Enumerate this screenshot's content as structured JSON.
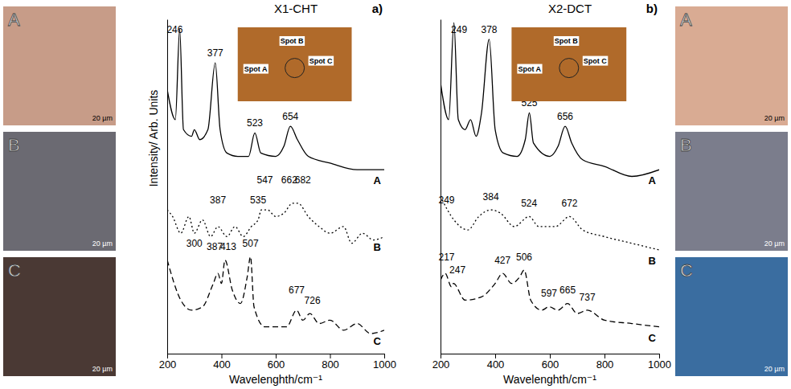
{
  "chart_data": [
    {
      "type": "line",
      "title": "X1-CHT",
      "panel": "a)",
      "x_label": "Wavelenghth/cm⁻¹",
      "y_label": "Intensity/ Arb. Units",
      "xlim": [
        200,
        1000
      ],
      "xticks": [
        200,
        400,
        600,
        800,
        1000
      ],
      "ylim": [
        0,
        100
      ],
      "tick_labels": "x",
      "grid": false,
      "inset_labels": [
        "Spot A",
        "Spot B",
        "Spot C"
      ],
      "series": [
        {
          "name": "A",
          "color": "#000000",
          "line_style": "solid",
          "x": [
            200,
            230,
            246,
            260,
            290,
            300,
            320,
            350,
            377,
            395,
            420,
            460,
            500,
            523,
            545,
            600,
            630,
            654,
            680,
            720,
            800,
            900,
            1000
          ],
          "values": [
            79,
            70,
            97,
            67,
            65,
            67,
            64,
            67,
            87,
            67,
            60,
            59,
            59,
            66,
            60,
            59,
            62,
            68,
            64,
            59,
            57,
            55,
            55
          ]
        },
        {
          "name": "B",
          "color": "#000000",
          "line_style": "dotted",
          "x": [
            200,
            220,
            250,
            280,
            300,
            330,
            360,
            387,
            420,
            450,
            480,
            510,
            535,
            547,
            570,
            600,
            630,
            662,
            682,
            720,
            760,
            800,
            850,
            880,
            920,
            960,
            1000
          ],
          "values": [
            43,
            41,
            36,
            41,
            36,
            40,
            35,
            38,
            35,
            38,
            35,
            38,
            40,
            43,
            43,
            41,
            42,
            45,
            45,
            41,
            38,
            36,
            38,
            33,
            36,
            34,
            35
          ]
        },
        {
          "name": "C",
          "color": "#000000",
          "line_style": "dashed",
          "x": [
            200,
            250,
            290,
            330,
            370,
            387,
            400,
            413,
            440,
            470,
            495,
            507,
            520,
            560,
            600,
            640,
            677,
            700,
            726,
            760,
            800,
            850,
            900,
            950,
            1000
          ],
          "values": [
            28,
            16,
            13,
            14,
            21,
            24,
            21,
            28,
            19,
            15,
            23,
            29,
            14,
            8,
            8,
            8,
            13,
            10,
            12,
            9,
            10,
            7,
            9,
            6,
            7
          ]
        }
      ],
      "annotations": [
        {
          "text": "246",
          "x": 228,
          "y": 95
        },
        {
          "text": "377",
          "x": 377,
          "y": 88
        },
        {
          "text": "523",
          "x": 523,
          "y": 67
        },
        {
          "text": "654",
          "x": 654,
          "y": 69
        },
        {
          "text": "300",
          "x": 300,
          "y": 31
        },
        {
          "text": "387",
          "x": 387,
          "y": 44
        },
        {
          "text": "535",
          "x": 535,
          "y": 44
        },
        {
          "text": "547",
          "x": 560,
          "y": 50
        },
        {
          "text": "662",
          "x": 650,
          "y": 50
        },
        {
          "text": "682",
          "x": 700,
          "y": 50
        },
        {
          "text": "387",
          "x": 375,
          "y": 30
        },
        {
          "text": "413",
          "x": 425,
          "y": 30
        },
        {
          "text": "507",
          "x": 507,
          "y": 31
        },
        {
          "text": "677",
          "x": 677,
          "y": 17
        },
        {
          "text": "726",
          "x": 735,
          "y": 14
        }
      ]
    },
    {
      "type": "line",
      "title": "X2-DCT",
      "panel": "b)",
      "x_label": "Wavelenghth/cm⁻¹",
      "xlim": [
        200,
        1000
      ],
      "xticks": [
        200,
        400,
        600,
        800,
        1000
      ],
      "ylim": [
        0,
        100
      ],
      "tick_labels": "x",
      "grid": false,
      "inset_labels": [
        "Spot A",
        "Spot B",
        "Spot C"
      ],
      "series": [
        {
          "name": "A",
          "color": "#000000",
          "line_style": "solid",
          "x": [
            200,
            230,
            249,
            265,
            290,
            310,
            330,
            350,
            378,
            400,
            430,
            480,
            510,
            525,
            540,
            600,
            630,
            656,
            680,
            720,
            800,
            900,
            1000
          ],
          "values": [
            81,
            70,
            99,
            70,
            67,
            70,
            65,
            72,
            94,
            67,
            60,
            59,
            64,
            72,
            63,
            59,
            62,
            68,
            63,
            58,
            56,
            53,
            55
          ]
        },
        {
          "name": "B",
          "color": "#000000",
          "line_style": "dotted",
          "x": [
            200,
            249,
            300,
            340,
            384,
            420,
            470,
            524,
            560,
            620,
            672,
            720,
            800,
            900,
            1000
          ],
          "values": [
            47,
            40,
            37,
            41,
            43,
            42,
            38,
            41,
            38,
            38,
            41,
            37,
            35,
            33,
            31
          ]
        },
        {
          "name": "C",
          "color": "#000000",
          "line_style": "dashed",
          "x": [
            200,
            217,
            240,
            247,
            290,
            350,
            400,
            427,
            460,
            490,
            506,
            530,
            570,
            597,
            630,
            665,
            700,
            737,
            800,
            900,
            1000
          ],
          "values": [
            22,
            24,
            20,
            21,
            16,
            17,
            21,
            24,
            21,
            23,
            25,
            16,
            13,
            14,
            13,
            15,
            12,
            13,
            10,
            9,
            8
          ]
        }
      ],
      "annotations": [
        {
          "text": "249",
          "x": 268,
          "y": 95
        },
        {
          "text": "378",
          "x": 378,
          "y": 95
        },
        {
          "text": "525",
          "x": 525,
          "y": 73
        },
        {
          "text": "656",
          "x": 656,
          "y": 69
        },
        {
          "text": "249",
          "x": 222,
          "y": 44
        },
        {
          "text": "384",
          "x": 384,
          "y": 45
        },
        {
          "text": "524",
          "x": 524,
          "y": 43
        },
        {
          "text": "672",
          "x": 672,
          "y": 43
        },
        {
          "text": "217",
          "x": 222,
          "y": 27
        },
        {
          "text": "247",
          "x": 262,
          "y": 23
        },
        {
          "text": "427",
          "x": 427,
          "y": 26
        },
        {
          "text": "506",
          "x": 506,
          "y": 27
        },
        {
          "text": "597",
          "x": 597,
          "y": 16
        },
        {
          "text": "665",
          "x": 665,
          "y": 17
        },
        {
          "text": "737",
          "x": 737,
          "y": 15
        }
      ]
    }
  ],
  "images": {
    "left": [
      {
        "label": "A",
        "scale": "20 µm"
      },
      {
        "label": "B",
        "scale": "20 µm"
      },
      {
        "label": "C",
        "scale": "20 µm"
      }
    ],
    "right": [
      {
        "label": "A",
        "scale": "20 µm"
      },
      {
        "label": "B",
        "scale": "20 µm"
      },
      {
        "label": "C",
        "scale": "20 µm"
      }
    ]
  }
}
